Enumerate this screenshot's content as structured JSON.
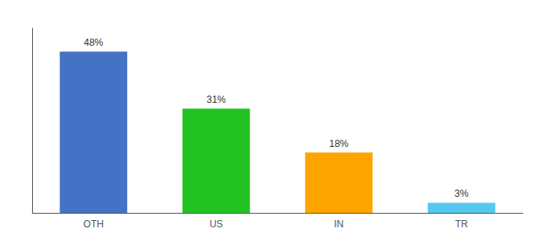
{
  "chart_data": {
    "type": "bar",
    "categories": [
      "OTH",
      "US",
      "IN",
      "TR"
    ],
    "values": [
      48,
      31,
      18,
      3
    ],
    "value_labels": [
      "48%",
      "31%",
      "18%",
      "3%"
    ],
    "colors": [
      "#4472C4",
      "#21C221",
      "#FFA500",
      "#56C8F0"
    ],
    "ylim": [
      0,
      55
    ],
    "grid": false,
    "tick_labels": "x"
  }
}
